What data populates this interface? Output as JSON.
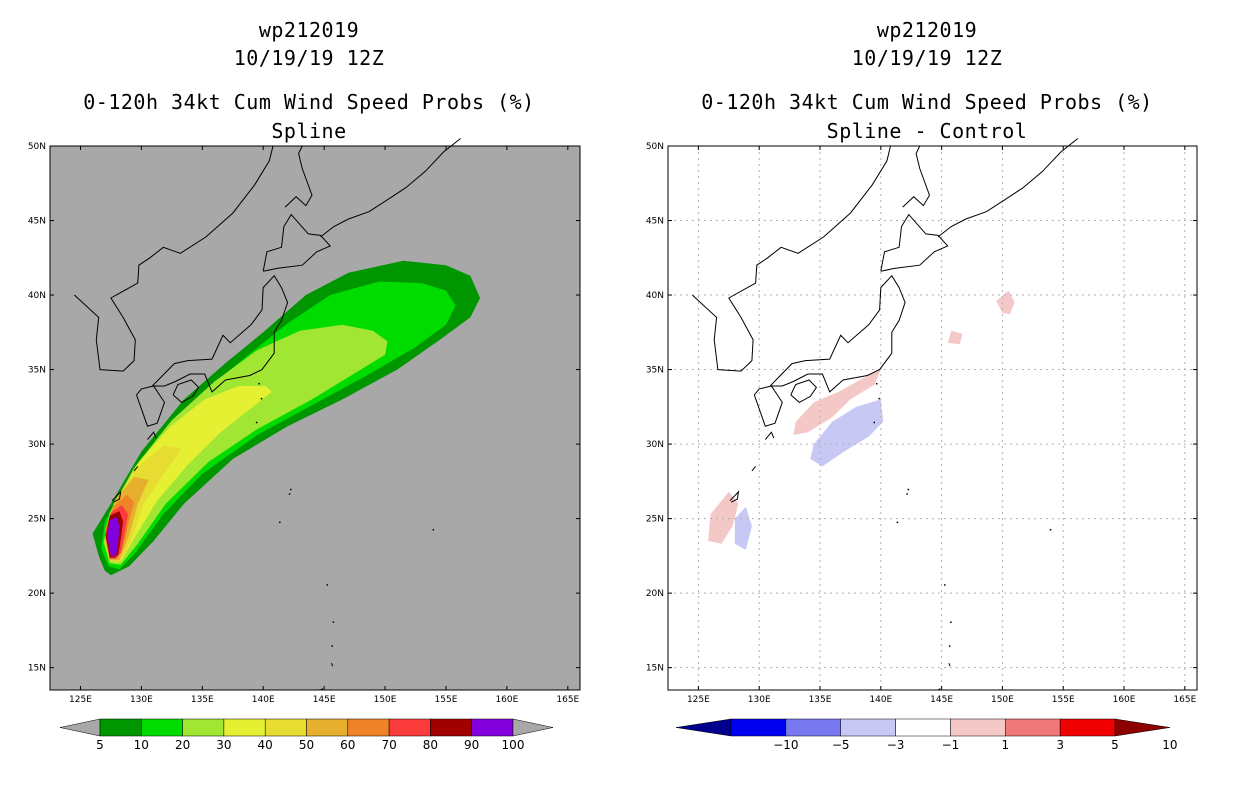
{
  "chart_data": [
    {
      "type": "heatmap",
      "title_lines": [
        "wp212019",
        "10/19/19 12Z",
        "0-120h 34kt Cum Wind Speed Probs (%)",
        "Spline"
      ],
      "background_color": "#a8a8a8",
      "x_ticks": [
        "125E",
        "130E",
        "135E",
        "140E",
        "145E",
        "150E",
        "155E",
        "160E",
        "165E"
      ],
      "y_ticks": [
        "15N",
        "20N",
        "25N",
        "30N",
        "35N",
        "40N",
        "45N",
        "50N"
      ],
      "xlim": [
        122.5,
        166.0
      ],
      "ylim": [
        13.5,
        50.0
      ],
      "colorbar": {
        "labels": [
          "5",
          "10",
          "20",
          "30",
          "40",
          "50",
          "60",
          "70",
          "80",
          "90",
          "100"
        ],
        "colors": [
          "#009600",
          "#00dc00",
          "#a0e632",
          "#e6f032",
          "#e6dc32",
          "#e6af2d",
          "#f08228",
          "#fa3c3c",
          "#a00000",
          "#8200dc"
        ]
      },
      "contours": [
        {
          "level": "5-10",
          "points": [
            [
              127.0,
              21.5
            ],
            [
              126.5,
              22.5
            ],
            [
              126.0,
              24.0
            ],
            [
              127.5,
              26.0
            ],
            [
              130.0,
              29.5
            ],
            [
              133.5,
              33.0
            ],
            [
              137.0,
              35.5
            ],
            [
              140.0,
              37.5
            ],
            [
              143.5,
              40.0
            ],
            [
              147.0,
              41.5
            ],
            [
              151.5,
              42.3
            ],
            [
              155.0,
              42.0
            ],
            [
              157.0,
              41.3
            ],
            [
              157.8,
              39.8
            ],
            [
              157.0,
              38.5
            ],
            [
              154.5,
              37.0
            ],
            [
              151.0,
              35.0
            ],
            [
              146.5,
              33.0
            ],
            [
              142.0,
              31.2
            ],
            [
              137.5,
              29.0
            ],
            [
              133.5,
              26.0
            ],
            [
              131.0,
              23.5
            ],
            [
              129.0,
              21.8
            ],
            [
              127.5,
              21.2
            ]
          ]
        },
        {
          "level": "10-20",
          "points": [
            [
              127.3,
              21.8
            ],
            [
              126.7,
              23.0
            ],
            [
              127.0,
              24.8
            ],
            [
              128.7,
              27.3
            ],
            [
              131.5,
              30.6
            ],
            [
              135.0,
              33.4
            ],
            [
              138.5,
              35.8
            ],
            [
              142.0,
              38.1
            ],
            [
              145.5,
              40.0
            ],
            [
              149.5,
              40.9
            ],
            [
              153.0,
              40.8
            ],
            [
              155.0,
              40.3
            ],
            [
              155.8,
              39.3
            ],
            [
              155.0,
              38.0
            ],
            [
              152.5,
              36.5
            ],
            [
              148.5,
              34.6
            ],
            [
              144.0,
              32.6
            ],
            [
              139.5,
              30.6
            ],
            [
              135.0,
              28.0
            ],
            [
              131.8,
              25.3
            ],
            [
              129.5,
              22.7
            ],
            [
              128.2,
              21.6
            ]
          ]
        },
        {
          "level": "20-30",
          "points": [
            [
              127.4,
              22.0
            ],
            [
              126.9,
              23.4
            ],
            [
              127.4,
              25.4
            ],
            [
              129.4,
              28.4
            ],
            [
              132.5,
              31.6
            ],
            [
              136.0,
              34.2
            ],
            [
              139.5,
              36.3
            ],
            [
              143.0,
              37.6
            ],
            [
              146.5,
              38.0
            ],
            [
              149.0,
              37.6
            ],
            [
              150.2,
              36.9
            ],
            [
              150.0,
              36.0
            ],
            [
              148.0,
              35.0
            ],
            [
              144.0,
              33.0
            ],
            [
              139.5,
              31.0
            ],
            [
              135.5,
              28.8
            ],
            [
              132.0,
              26.0
            ],
            [
              129.7,
              23.3
            ],
            [
              128.3,
              21.9
            ]
          ]
        },
        {
          "level": "30-40",
          "points": [
            [
              127.4,
              22.1
            ],
            [
              127.0,
              23.8
            ],
            [
              127.8,
              26.0
            ],
            [
              129.8,
              28.8
            ],
            [
              132.4,
              31.2
            ],
            [
              135.2,
              33.0
            ],
            [
              138.0,
              33.9
            ],
            [
              140.2,
              33.9
            ],
            [
              140.7,
              33.5
            ],
            [
              139.0,
              32.4
            ],
            [
              136.5,
              30.8
            ],
            [
              133.8,
              28.6
            ],
            [
              131.3,
              26.2
            ],
            [
              129.5,
              23.8
            ],
            [
              128.3,
              22.1
            ]
          ]
        },
        {
          "level": "40-50",
          "points": [
            [
              127.4,
              22.1
            ],
            [
              127.0,
              24.0
            ],
            [
              127.8,
              26.2
            ],
            [
              129.6,
              28.4
            ],
            [
              131.8,
              29.9
            ],
            [
              133.3,
              29.7
            ],
            [
              132.0,
              28.2
            ],
            [
              130.2,
              26.0
            ],
            [
              129.2,
              23.6
            ],
            [
              128.3,
              22.1
            ]
          ]
        },
        {
          "level": "50-60",
          "points": [
            [
              127.4,
              22.2
            ],
            [
              127.0,
              24.2
            ],
            [
              127.9,
              26.3
            ],
            [
              129.4,
              27.8
            ],
            [
              130.6,
              27.6
            ],
            [
              129.7,
              26.0
            ],
            [
              129.0,
              23.9
            ],
            [
              128.2,
              22.2
            ]
          ]
        },
        {
          "level": "60-70",
          "points": [
            [
              127.4,
              22.3
            ],
            [
              127.0,
              24.1
            ],
            [
              127.7,
              25.8
            ],
            [
              128.8,
              26.6
            ],
            [
              129.4,
              26.1
            ],
            [
              128.9,
              24.6
            ],
            [
              128.5,
              23.0
            ],
            [
              128.0,
              22.3
            ]
          ]
        },
        {
          "level": "70-80",
          "points": [
            [
              127.4,
              22.3
            ],
            [
              127.0,
              23.9
            ],
            [
              127.5,
              25.4
            ],
            [
              128.4,
              25.9
            ],
            [
              128.9,
              25.3
            ],
            [
              128.6,
              23.9
            ],
            [
              128.3,
              22.7
            ],
            [
              127.9,
              22.3
            ]
          ]
        },
        {
          "level": "80-90",
          "points": [
            [
              127.4,
              22.4
            ],
            [
              127.1,
              23.8
            ],
            [
              127.4,
              25.2
            ],
            [
              128.2,
              25.5
            ],
            [
              128.5,
              24.8
            ],
            [
              128.3,
              23.6
            ],
            [
              128.1,
              22.6
            ],
            [
              127.8,
              22.4
            ]
          ]
        },
        {
          "level": "90-100",
          "points": [
            [
              127.5,
              22.5
            ],
            [
              127.2,
              23.8
            ],
            [
              127.4,
              24.9
            ],
            [
              128.0,
              25.1
            ],
            [
              128.2,
              24.5
            ],
            [
              128.1,
              23.3
            ],
            [
              127.9,
              22.5
            ]
          ]
        }
      ]
    },
    {
      "type": "heatmap",
      "title_lines": [
        "wp212019",
        "10/19/19 12Z",
        "0-120h 34kt Cum Wind Speed Probs (%)",
        "Spline - Control"
      ],
      "background_color": "#ffffff",
      "x_ticks": [
        "125E",
        "130E",
        "135E",
        "140E",
        "145E",
        "150E",
        "155E",
        "160E",
        "165E"
      ],
      "y_ticks": [
        "15N",
        "20N",
        "25N",
        "30N",
        "35N",
        "40N",
        "45N",
        "50N"
      ],
      "xlim": [
        122.5,
        166.0
      ],
      "ylim": [
        13.5,
        50.0
      ],
      "colorbar": {
        "labels": [
          "-10",
          "-5",
          "-3",
          "-1",
          "1",
          "3",
          "5",
          "10"
        ],
        "colors": [
          "#00008c",
          "#0000f0",
          "#7878f0",
          "#c8c8f5",
          "#ffffff",
          "#f5c8c8",
          "#f07878",
          "#f00000",
          "#8c0000"
        ]
      },
      "contours": [
        {
          "level": "1-3",
          "points": [
            [
              133.0,
              31.5
            ],
            [
              134.5,
              32.8
            ],
            [
              136.5,
              33.5
            ],
            [
              138.5,
              34.4
            ],
            [
              140.0,
              35.0
            ],
            [
              139.5,
              34.0
            ],
            [
              137.5,
              33.0
            ],
            [
              136.0,
              31.8
            ],
            [
              134.0,
              30.8
            ],
            [
              132.8,
              30.6
            ]
          ]
        },
        {
          "level": "1-3",
          "points": [
            [
              125.8,
              23.5
            ],
            [
              126.0,
              25.3
            ],
            [
              127.5,
              26.8
            ],
            [
              128.3,
              26.0
            ],
            [
              127.8,
              24.5
            ],
            [
              126.9,
              23.3
            ]
          ]
        },
        {
          "level": "1-3",
          "points": [
            [
              150.0,
              38.8
            ],
            [
              149.5,
              39.6
            ],
            [
              150.5,
              40.3
            ],
            [
              151.0,
              39.5
            ],
            [
              150.6,
              38.7
            ]
          ]
        },
        {
          "level": "1-3",
          "points": [
            [
              145.5,
              36.8
            ],
            [
              145.8,
              37.6
            ],
            [
              146.7,
              37.4
            ],
            [
              146.5,
              36.7
            ]
          ]
        },
        {
          "level": "-3--1",
          "points": [
            [
              134.5,
              30.0
            ],
            [
              136.0,
              31.5
            ],
            [
              138.0,
              32.5
            ],
            [
              140.0,
              33.0
            ],
            [
              140.2,
              31.5
            ],
            [
              139.0,
              30.5
            ],
            [
              137.0,
              29.5
            ],
            [
              135.2,
              28.5
            ],
            [
              134.2,
              29.0
            ]
          ]
        },
        {
          "level": "-3--1",
          "points": [
            [
              128.0,
              23.3
            ],
            [
              128.0,
              25.0
            ],
            [
              128.9,
              25.8
            ],
            [
              129.4,
              24.5
            ],
            [
              128.9,
              22.9
            ]
          ]
        }
      ]
    }
  ]
}
